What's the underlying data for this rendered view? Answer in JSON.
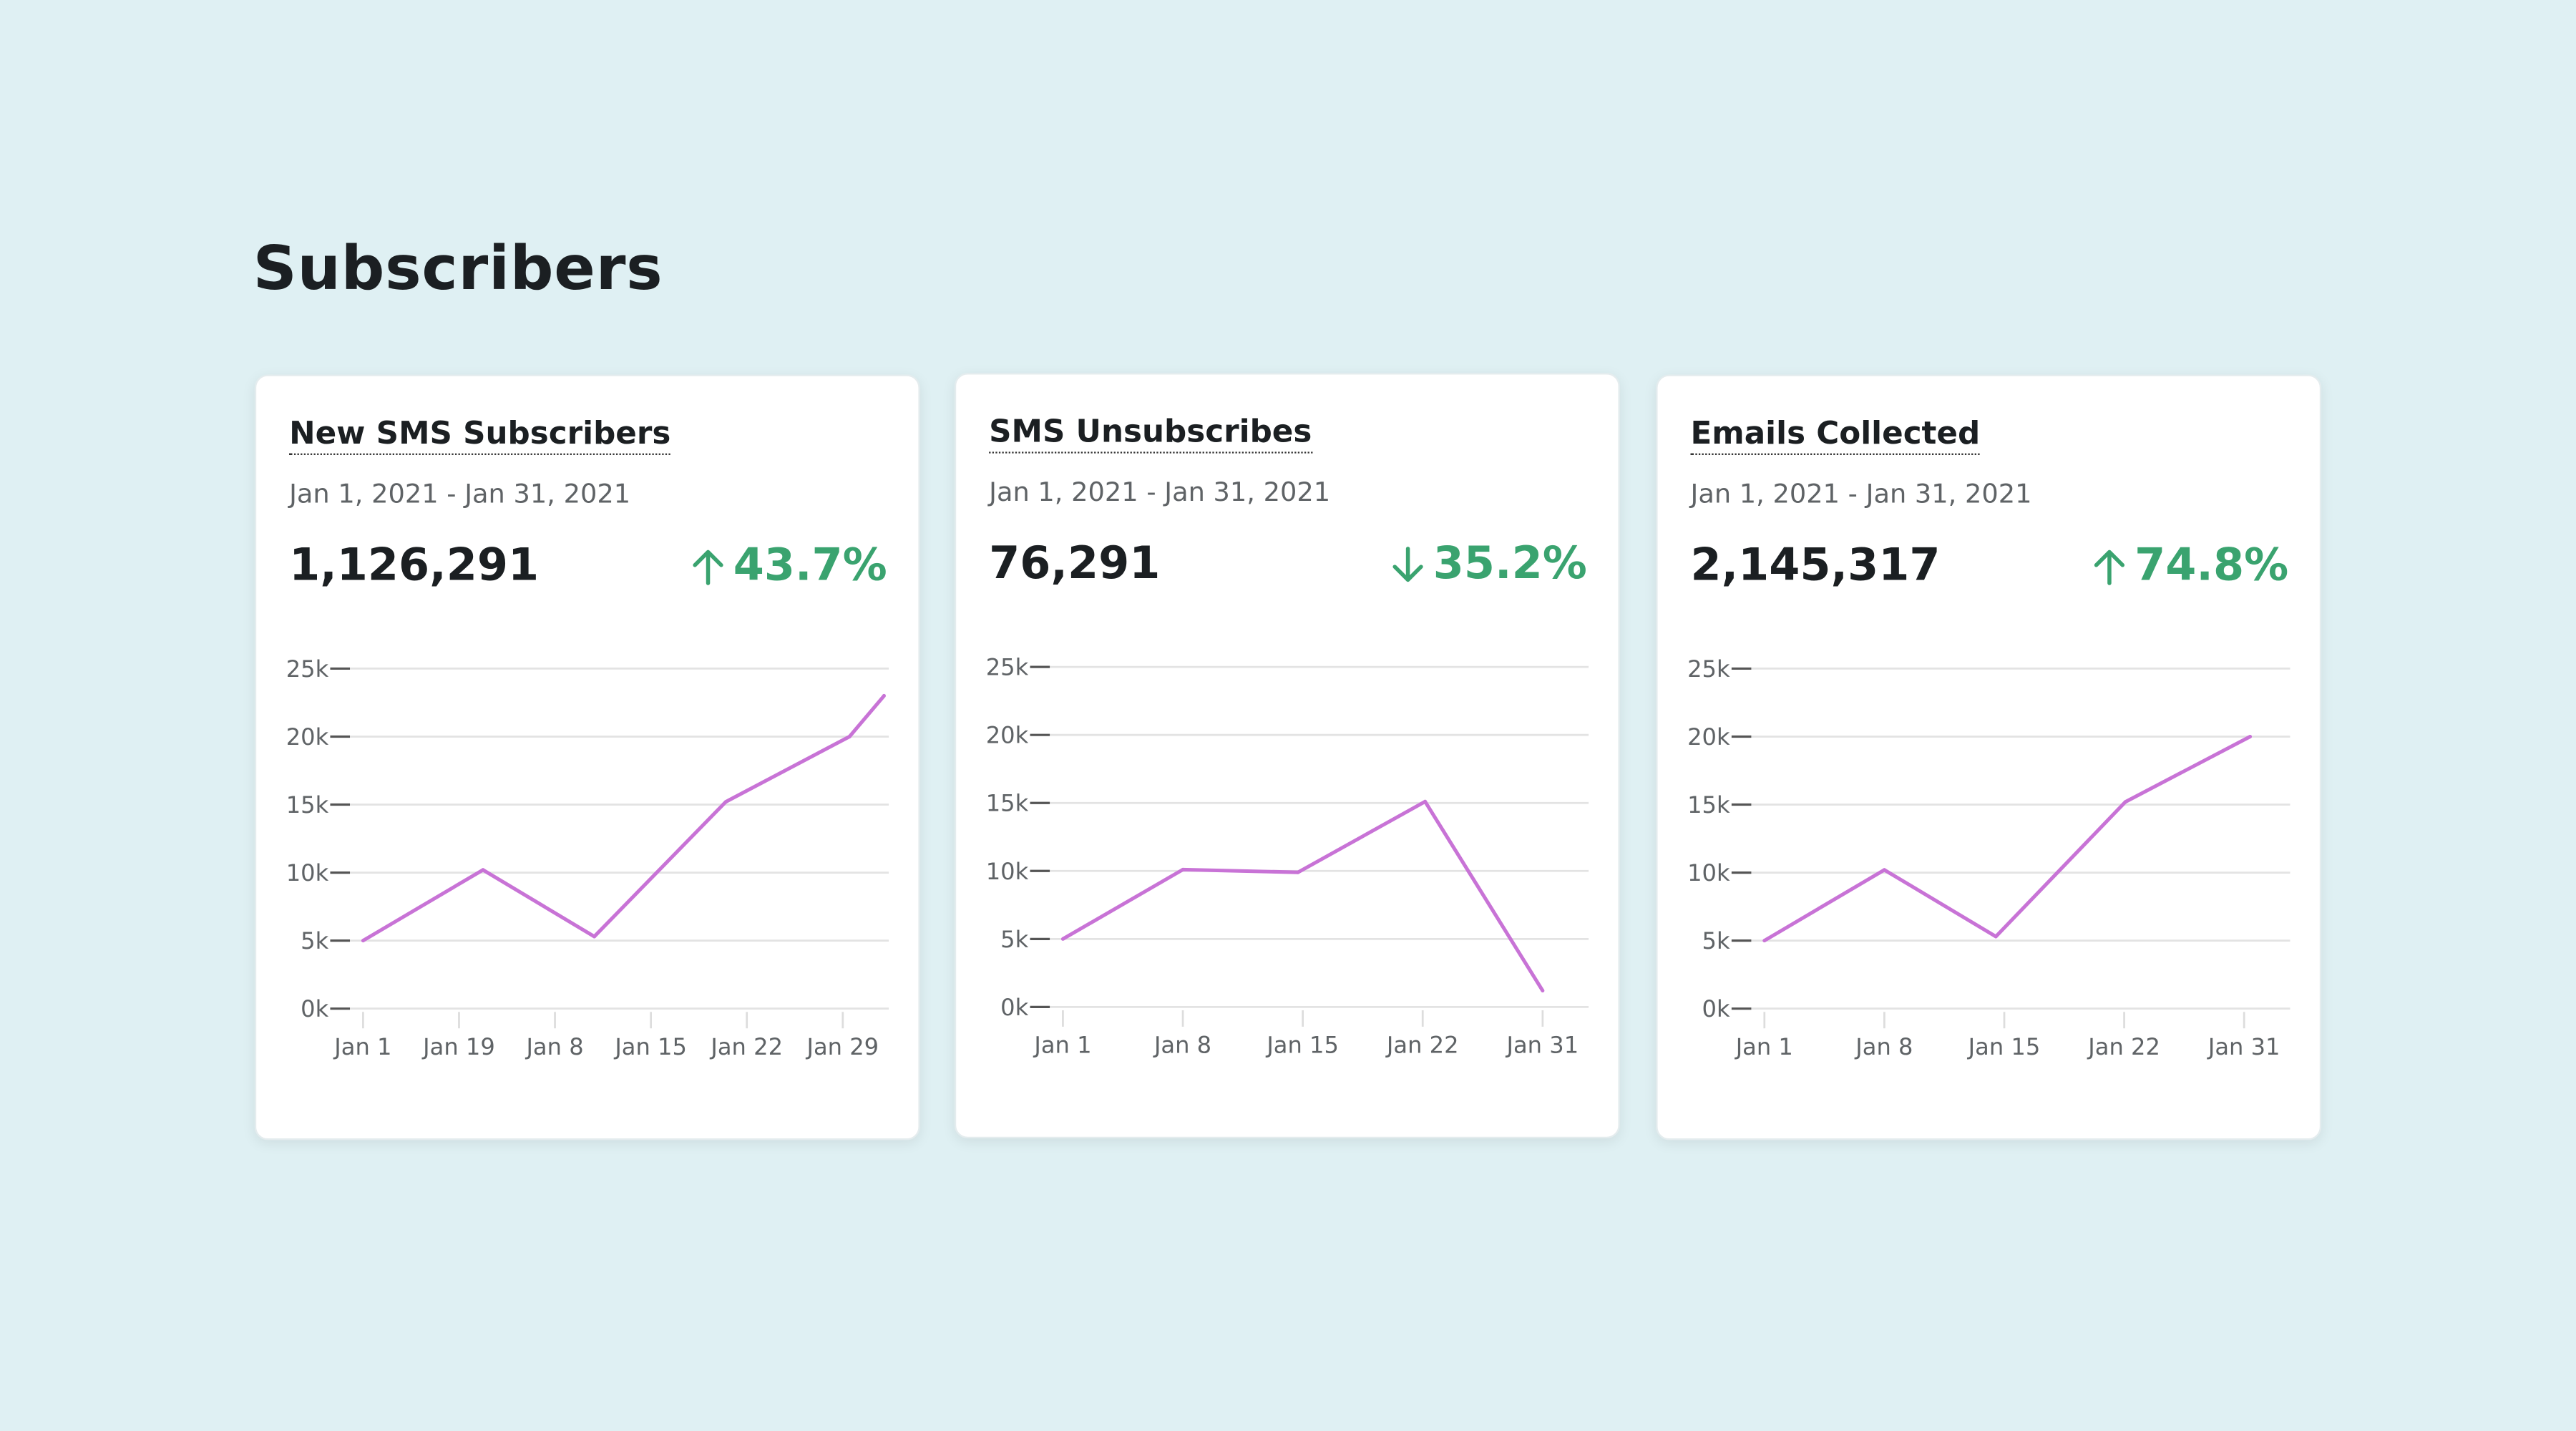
{
  "page": {
    "title": "Subscribers"
  },
  "colors": {
    "background": "#dff0f3",
    "line": "#c873d6",
    "positive": "#3aa36f",
    "grid": "#e3e3e3"
  },
  "cards": [
    {
      "title": "New SMS Subscribers",
      "date_range": "Jan 1, 2021 - Jan 31, 2021",
      "value": "1,126,291",
      "change": "43.7%",
      "direction": "up",
      "direction_icon": "arrow-up-icon"
    },
    {
      "title": "SMS Unsubscribes",
      "date_range": "Jan 1, 2021 - Jan 31, 2021",
      "value": "76,291",
      "change": "35.2%",
      "direction": "down",
      "direction_icon": "arrow-down-icon"
    },
    {
      "title": "Emails Collected",
      "date_range": "Jan 1, 2021 - Jan 31, 2021",
      "value": "2,145,317",
      "change": "74.8%",
      "direction": "up",
      "direction_icon": "arrow-up-icon"
    }
  ],
  "chart_data": [
    {
      "type": "line",
      "categories": [
        "Jan 1",
        "Jan 19",
        "Jan 8",
        "Jan 15",
        "Jan 22",
        "Jan 29"
      ],
      "y_ticks": [
        "0k",
        "5k",
        "10k",
        "15k",
        "20k",
        "25k"
      ],
      "ylim": [
        0,
        25000
      ],
      "grid": true,
      "series": [
        {
          "x_index": [
            0,
            1.25,
            2.41,
            3.78,
            5.07,
            5.43
          ],
          "values": [
            5000,
            10200,
            5300,
            15200,
            20000,
            23000
          ]
        }
      ]
    },
    {
      "type": "line",
      "categories": [
        "Jan 1",
        "Jan 8",
        "Jan 15",
        "Jan 22",
        "Jan 31"
      ],
      "y_ticks": [
        "0k",
        "5k",
        "10k",
        "15k",
        "20k",
        "25k"
      ],
      "ylim": [
        0,
        25000
      ],
      "grid": true,
      "series": [
        {
          "x_index": [
            0,
            1,
            1.96,
            3.02,
            4
          ],
          "values": [
            5000,
            10100,
            9900,
            15100,
            1200
          ]
        }
      ]
    },
    {
      "type": "line",
      "categories": [
        "Jan 1",
        "Jan 8",
        "Jan 15",
        "Jan 22",
        "Jan 31"
      ],
      "y_ticks": [
        "0k",
        "5k",
        "10k",
        "15k",
        "20k",
        "25k"
      ],
      "ylim": [
        0,
        25000
      ],
      "grid": true,
      "series": [
        {
          "x_index": [
            0,
            1,
            1.93,
            3.01,
            4.05
          ],
          "values": [
            5000,
            10200,
            5300,
            15200,
            20000
          ]
        }
      ]
    }
  ]
}
